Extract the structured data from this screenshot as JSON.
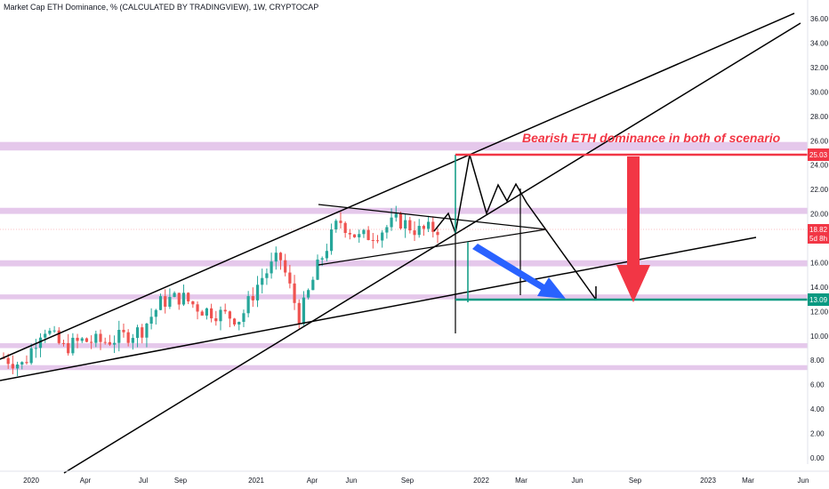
{
  "header": {
    "title": "Market Cap ETH Dominance, % (CALCULATED BY TRADINGVIEW), 1W, CRYPTOCAP"
  },
  "annotation": {
    "text": "Bearish ETH dominance in both of scenario"
  },
  "price_tags": {
    "upper": "25.03",
    "current": "18.82",
    "countdown": "5d 8h",
    "lower": "13.09"
  },
  "colors": {
    "candle_up": "#26a69a",
    "candle_down": "#ef5350",
    "zone": "#e1bee7",
    "trendline": "#000000",
    "level_red": "#f23645",
    "level_teal": "#089981",
    "arrow_red": "#f23645",
    "arrow_blue": "#2962ff"
  },
  "chart_data": {
    "type": "candlestick",
    "title": "Market Cap ETH Dominance, % (CALCULATED BY TRADINGVIEW), 1W, CRYPTOCAP",
    "y_axis": {
      "ticks": [
        "0.00",
        "2.00",
        "4.00",
        "6.00",
        "8.00",
        "10.00",
        "12.00",
        "14.00",
        "16.00",
        "18.00",
        "20.00",
        "22.00",
        "24.00",
        "26.00",
        "28.00",
        "30.00",
        "32.00",
        "34.00",
        "36.00"
      ],
      "range": [
        -1,
        37
      ]
    },
    "x_axis": {
      "ticks": [
        "2020",
        "Apr",
        "Jul",
        "Sep",
        "2021",
        "Apr",
        "Jun",
        "Sep",
        "2022",
        "Mar",
        "Jun",
        "Sep",
        "2023",
        "Mar",
        "Jun"
      ]
    },
    "grid": false,
    "closes_approx": [
      {
        "date": "2019-12",
        "close": 8.2
      },
      {
        "date": "2020-01",
        "close": 7.6
      },
      {
        "date": "2020-02",
        "close": 10.8
      },
      {
        "date": "2020-03",
        "close": 9.0
      },
      {
        "date": "2020-04",
        "close": 9.6
      },
      {
        "date": "2020-05",
        "close": 9.5
      },
      {
        "date": "2020-06",
        "close": 9.9
      },
      {
        "date": "2020-07",
        "close": 10.5
      },
      {
        "date": "2020-08",
        "close": 12.8
      },
      {
        "date": "2020-09",
        "close": 13.2
      },
      {
        "date": "2020-10",
        "close": 12.2
      },
      {
        "date": "2020-11",
        "close": 11.8
      },
      {
        "date": "2020-12",
        "close": 11.4
      },
      {
        "date": "2021-01",
        "close": 14.6
      },
      {
        "date": "2021-02",
        "close": 16.5
      },
      {
        "date": "2021-03",
        "close": 11.5
      },
      {
        "date": "2021-04",
        "close": 16.0
      },
      {
        "date": "2021-05",
        "close": 19.5
      },
      {
        "date": "2021-06",
        "close": 18.0
      },
      {
        "date": "2021-07",
        "close": 18.5
      },
      {
        "date": "2021-08",
        "close": 19.5
      },
      {
        "date": "2021-09",
        "close": 18.6
      },
      {
        "date": "2021-10",
        "close": 18.8
      }
    ],
    "horizontal_levels": [
      25.03,
      13.09
    ],
    "zones": [
      [
        25.2,
        25.9
      ],
      [
        20.0,
        20.5
      ],
      [
        15.7,
        16.2
      ],
      [
        13.0,
        13.4
      ],
      [
        9.0,
        9.4
      ],
      [
        7.2,
        7.6
      ]
    ]
  }
}
